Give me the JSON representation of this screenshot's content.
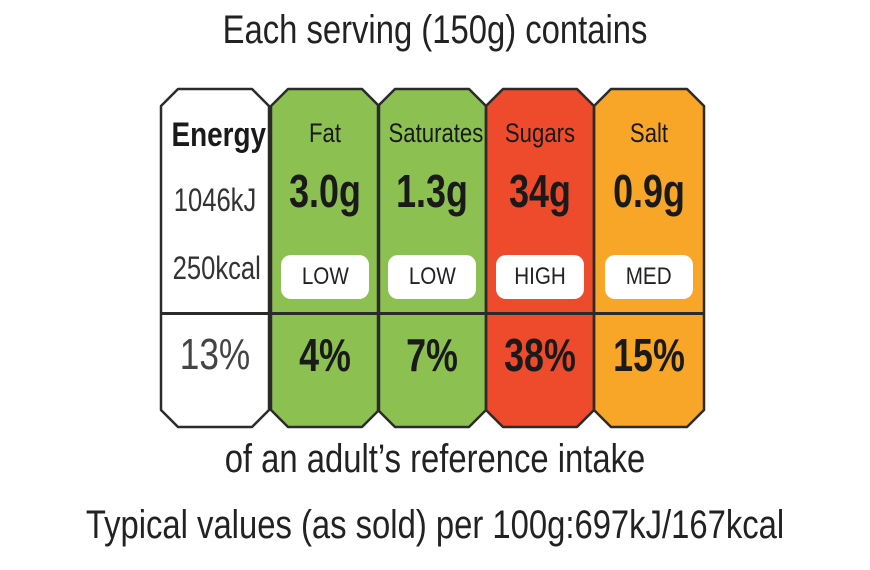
{
  "title": "Each serving (150g) contains",
  "energy": {
    "label": "Energy",
    "kj": "1046kJ",
    "kcal": "250kcal",
    "percent": "13%",
    "color": "#ffffff"
  },
  "nutrients": [
    {
      "name": "Fat",
      "amount": "3.0g",
      "level": "LOW",
      "percent": "4%",
      "color": "#8cc152"
    },
    {
      "name": "Saturates",
      "amount": "1.3g",
      "level": "LOW",
      "percent": "7%",
      "color": "#8cc152"
    },
    {
      "name": "Sugars",
      "amount": "34g",
      "level": "HIGH",
      "percent": "38%",
      "color": "#ee4b2c"
    },
    {
      "name": "Salt",
      "amount": "0.9g",
      "level": "MED",
      "percent": "15%",
      "color": "#f8a628"
    }
  ],
  "footer": {
    "reference": "of an adult’s reference intake",
    "typical": "Typical values (as sold) per 100g:697kJ/167kcal"
  }
}
